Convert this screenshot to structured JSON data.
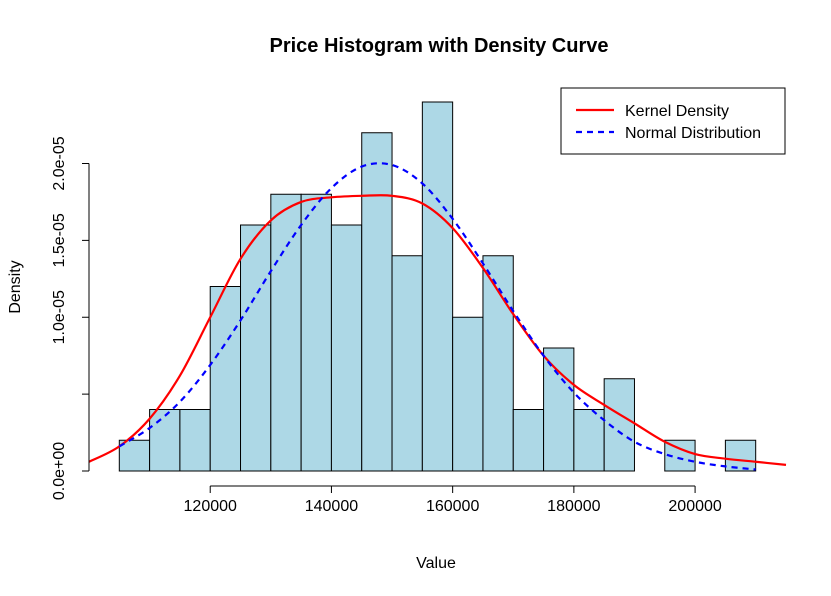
{
  "chart_data": {
    "type": "bar",
    "title": "Price Histogram with Density Curve",
    "xlabel": "Value",
    "ylabel": "Density",
    "xlim": [
      100000,
      215000
    ],
    "ylim": [
      0,
      2.4e-05
    ],
    "x_ticks": [
      120000,
      140000,
      160000,
      180000,
      200000
    ],
    "x_tick_labels": [
      "120000",
      "140000",
      "160000",
      "180000",
      "200000"
    ],
    "y_ticks": [
      0,
      5e-06,
      1e-05,
      1.5e-05,
      2e-05
    ],
    "y_tick_labels": [
      "0.0e+00",
      "",
      "1.0e-05",
      "1.5e-05",
      "2.0e-05"
    ],
    "bins": [
      {
        "x0": 105000,
        "x1": 110000,
        "density": 2e-06
      },
      {
        "x0": 110000,
        "x1": 115000,
        "density": 4e-06
      },
      {
        "x0": 115000,
        "x1": 120000,
        "density": 4e-06
      },
      {
        "x0": 120000,
        "x1": 125000,
        "density": 1.2e-05
      },
      {
        "x0": 125000,
        "x1": 130000,
        "density": 1.6e-05
      },
      {
        "x0": 130000,
        "x1": 135000,
        "density": 1.8e-05
      },
      {
        "x0": 135000,
        "x1": 140000,
        "density": 1.8e-05
      },
      {
        "x0": 140000,
        "x1": 145000,
        "density": 1.6e-05
      },
      {
        "x0": 145000,
        "x1": 150000,
        "density": 2.2e-05
      },
      {
        "x0": 150000,
        "x1": 155000,
        "density": 1.4e-05
      },
      {
        "x0": 155000,
        "x1": 160000,
        "density": 2.4e-05
      },
      {
        "x0": 160000,
        "x1": 165000,
        "density": 1e-05
      },
      {
        "x0": 165000,
        "x1": 170000,
        "density": 1.4e-05
      },
      {
        "x0": 170000,
        "x1": 175000,
        "density": 4e-06
      },
      {
        "x0": 175000,
        "x1": 180000,
        "density": 8e-06
      },
      {
        "x0": 180000,
        "x1": 185000,
        "density": 4e-06
      },
      {
        "x0": 185000,
        "x1": 190000,
        "density": 6e-06
      },
      {
        "x0": 190000,
        "x1": 195000,
        "density": 0
      },
      {
        "x0": 195000,
        "x1": 200000,
        "density": 2e-06
      },
      {
        "x0": 200000,
        "x1": 205000,
        "density": 0
      },
      {
        "x0": 205000,
        "x1": 210000,
        "density": 2e-06
      }
    ],
    "series": [
      {
        "name": "Kernel Density",
        "color": "#FF0000",
        "style": "solid",
        "x": [
          100000,
          105000,
          110000,
          115000,
          120000,
          125000,
          130000,
          135000,
          140000,
          145000,
          150000,
          155000,
          160000,
          165000,
          170000,
          175000,
          180000,
          185000,
          190000,
          195000,
          200000,
          205000,
          210000,
          215000
        ],
        "values": [
          6e-07,
          1.6e-06,
          3.4e-06,
          6.2e-06,
          1e-05,
          1.38e-05,
          1.63e-05,
          1.75e-05,
          1.78e-05,
          1.79e-05,
          1.79e-05,
          1.74e-05,
          1.58e-05,
          1.32e-05,
          1.02e-05,
          7.5e-06,
          5.6e-06,
          4.3e-06,
          3.1e-06,
          1.9e-06,
          1.1e-06,
          8e-07,
          6e-07,
          4e-07
        ]
      },
      {
        "name": "Normal Distribution",
        "color": "#0000FF",
        "style": "dashed",
        "x": [
          105000,
          110000,
          115000,
          120000,
          125000,
          130000,
          135000,
          140000,
          145000,
          150000,
          155000,
          160000,
          165000,
          170000,
          175000,
          180000,
          185000,
          190000,
          195000,
          200000,
          205000,
          210000
        ],
        "values": [
          1.6e-06,
          2.8e-06,
          4.5e-06,
          6.9e-06,
          9.8e-06,
          1.3e-05,
          1.6e-05,
          1.84e-05,
          1.98e-05,
          1.99e-05,
          1.87e-05,
          1.64e-05,
          1.35e-05,
          1.04e-05,
          7.5e-06,
          5.1e-06,
          3.3e-06,
          1.9e-06,
          1.1e-06,
          6e-07,
          3e-07,
          1e-07
        ]
      }
    ],
    "grid": false,
    "legend_position": "top-right"
  }
}
